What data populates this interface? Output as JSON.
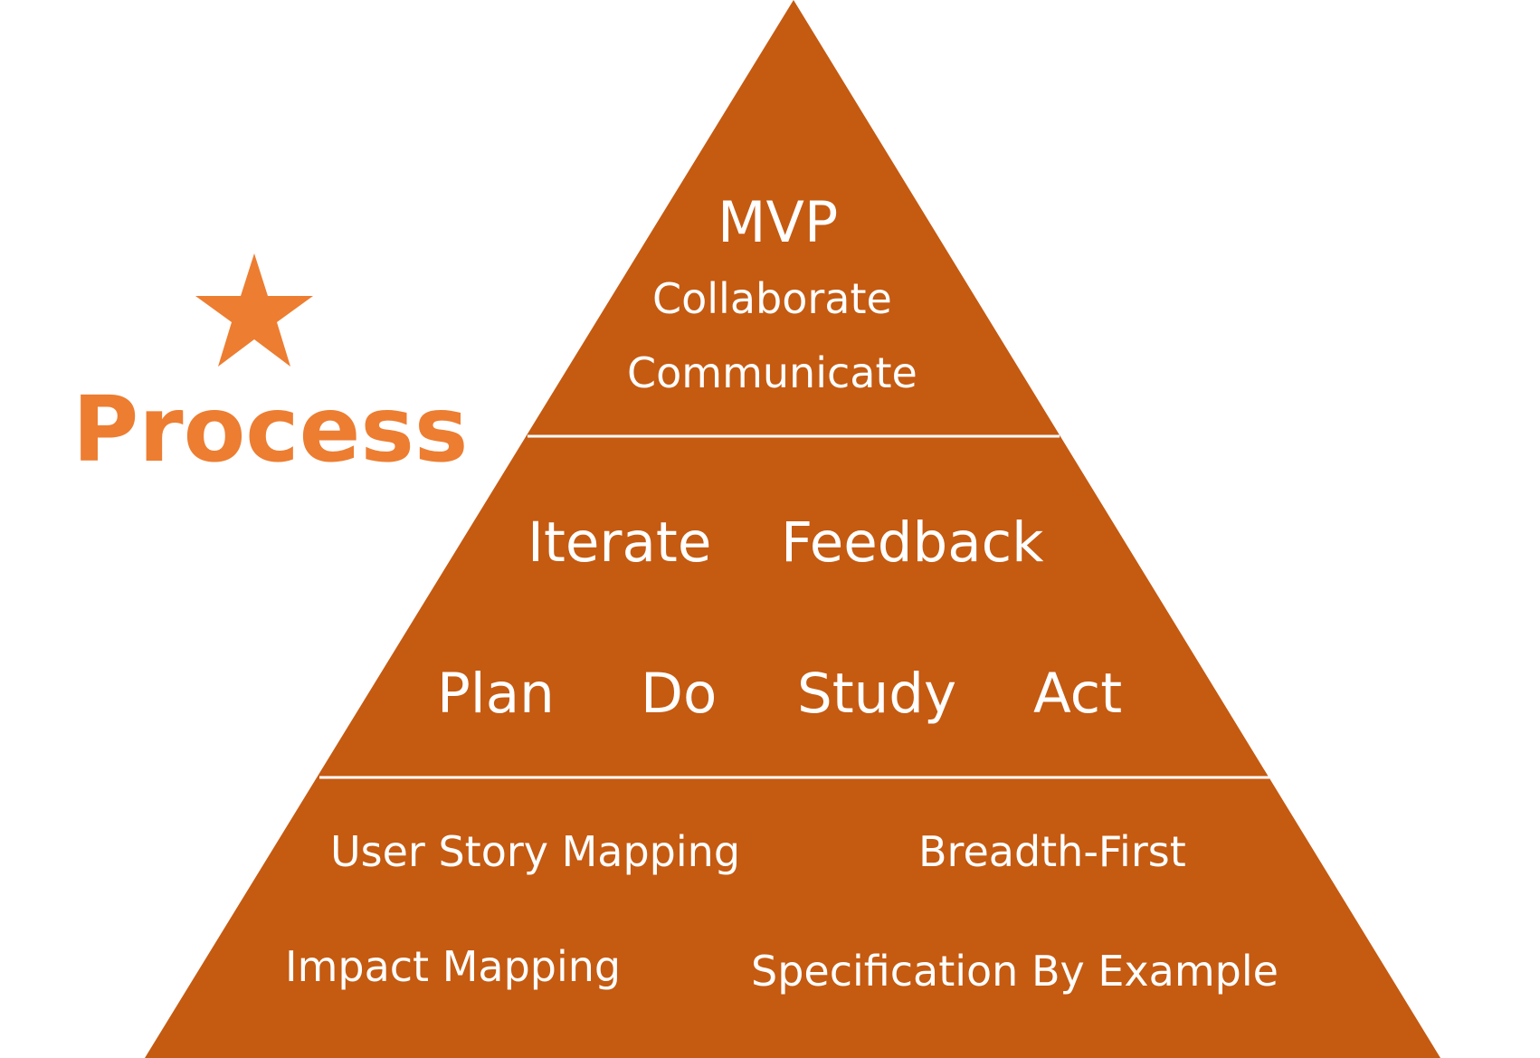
{
  "colors": {
    "pyramid_fill": "#C55A11",
    "divider": "#ffffff",
    "label_text": "#ffffff",
    "accent": "#ED7D31"
  },
  "aside": {
    "icon": "star-icon",
    "title": "Process"
  },
  "pyramid": {
    "top": {
      "heading": "MVP",
      "lines": [
        "Collaborate",
        "Communicate"
      ]
    },
    "middle": {
      "row1": [
        "Iterate",
        "Feedback"
      ],
      "row2": [
        "Plan",
        "Do",
        "Study",
        "Act"
      ]
    },
    "bottom": {
      "row1": [
        "User Story Mapping",
        "Breadth-First"
      ],
      "row2": [
        "Impact Mapping",
        "Specification By Example"
      ]
    }
  }
}
